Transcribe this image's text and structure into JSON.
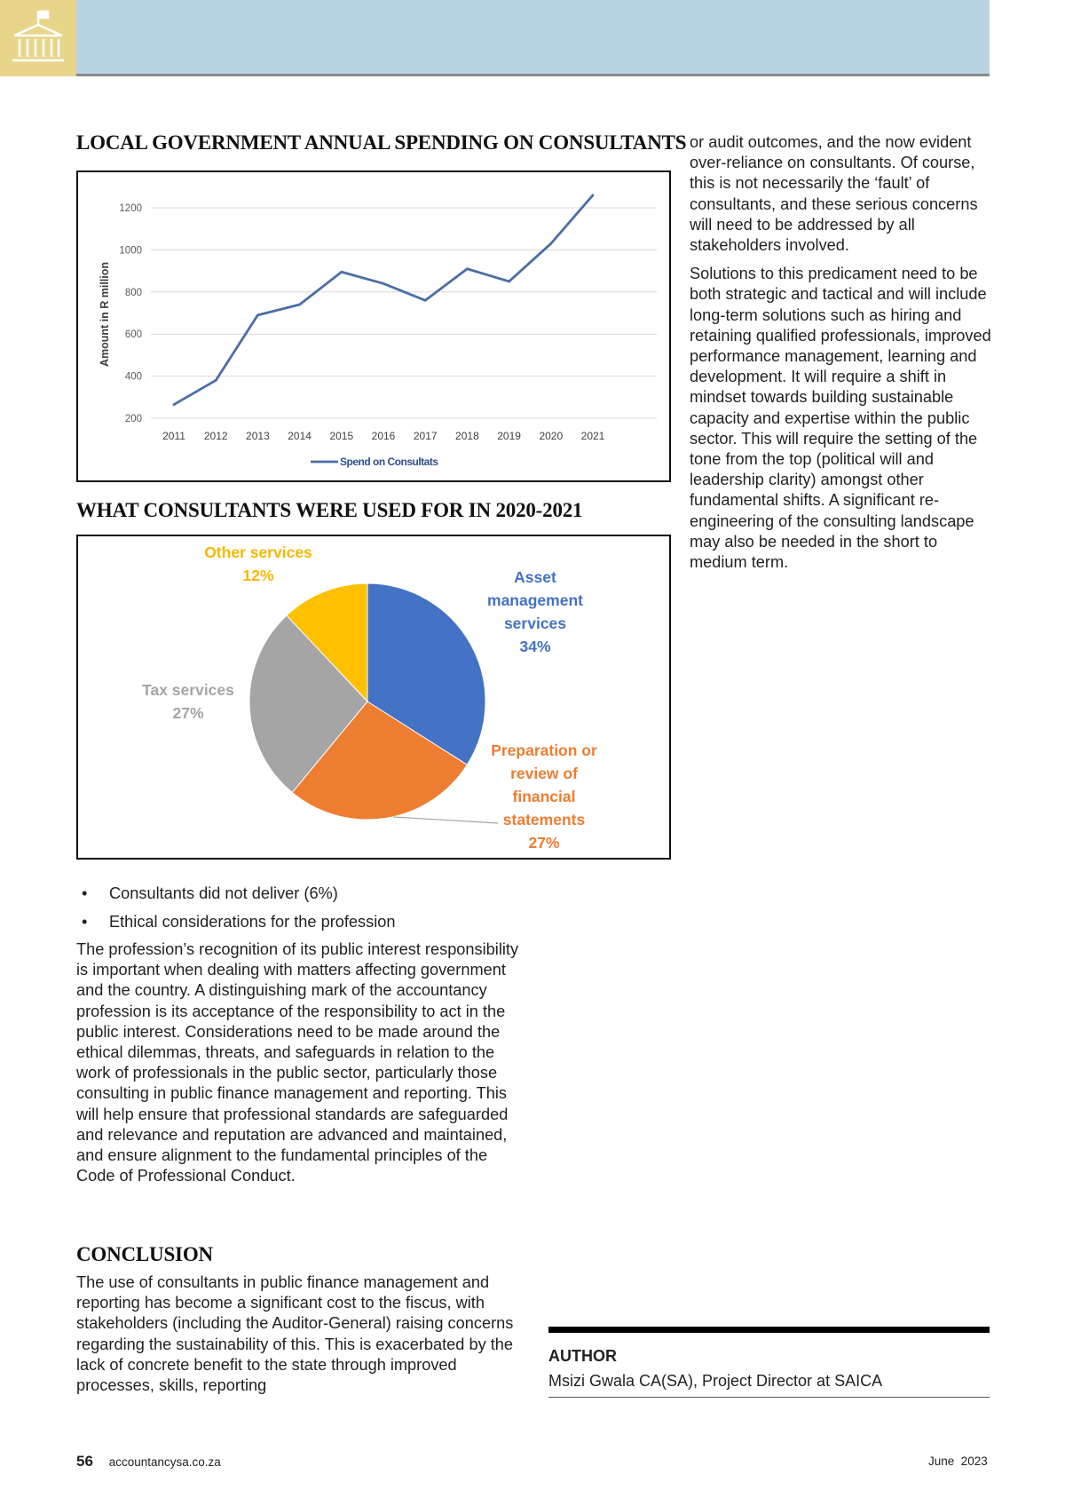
{
  "header": {
    "logo_icon": "government-building-icon"
  },
  "line_section_title": "LOCAL GOVERNMENT ANNUAL SPENDING ON CONSULTANTS",
  "pie_section_title": "WHAT CONSULTANTS WERE USED FOR IN 2020-2021",
  "chart_data": [
    {
      "type": "line",
      "title": "",
      "xlabel": "",
      "ylabel": "Amount in R million",
      "x": [
        "2011",
        "2012",
        "2013",
        "2014",
        "2015",
        "2016",
        "2017",
        "2018",
        "2019",
        "2020",
        "2021"
      ],
      "yticks": [
        200,
        400,
        600,
        800,
        1000,
        1200
      ],
      "ylim": [
        200,
        1200
      ],
      "grid": true,
      "legend_position": "bottom",
      "series": [
        {
          "name": "Spend on Consultats",
          "color": "#4a6fa5",
          "values": [
            265,
            380,
            690,
            740,
            895,
            840,
            760,
            910,
            850,
            1030,
            1260
          ]
        }
      ]
    },
    {
      "type": "pie",
      "title": "",
      "slices": [
        {
          "label": "Asset management services",
          "percent_label": "34%",
          "value": 34,
          "color": "#4472c4"
        },
        {
          "label": "Preparation or review of financial statements",
          "percent_label": "27%",
          "value": 27,
          "color": "#ed7d31"
        },
        {
          "label": "Tax services",
          "percent_label": "27%",
          "value": 27,
          "color": "#a5a5a5"
        },
        {
          "label": "Other services",
          "percent_label": "12%",
          "value": 12,
          "color": "#ffc000"
        }
      ]
    }
  ],
  "pie_labels": {
    "other": [
      "Other services",
      "12%"
    ],
    "asset": [
      "Asset",
      "management",
      "services",
      "34%"
    ],
    "tax": [
      "Tax services",
      "27%"
    ],
    "prep": [
      "Preparation or",
      "review of",
      "financial",
      "statements",
      "27%"
    ]
  },
  "right_column": [
    "or audit outcomes, and the now evident over-reliance on consultants. Of course, this is not necessarily the ‘fault’ of consultants, and these serious concerns will need to be addressed by all stakeholders involved.",
    "Solutions to this predicament need to be both strategic and tactical and will include long-term solutions such as hiring and retaining qualified professionals, improved performance management, learning and development. It will require a shift in mindset towards building sustainable capacity and expertise within the public sector. This will require the setting of the tone from the top (political will and leadership clarity) amongst other fundamental shifts. A significant re-engineering of the consulting landscape may also be needed in the short to medium term."
  ],
  "bullets": [
    "Consultants did not deliver (6%)",
    "Ethical considerations for the profession"
  ],
  "ethics_paragraph": "The profession’s recognition of its public interest responsibility is important when dealing with matters affecting government and the country. A distinguishing mark of the accountancy profession is its acceptance of the responsibility to act in the public interest. Considerations need to be made around the ethical dilemmas, threats, and safeguards in relation to the work of professionals in the public sector, particularly those consulting in public finance management and reporting. This will help ensure that professional standards are safeguarded and relevance and reputation are advanced and maintained, and ensure alignment to the fundamental principles of the Code of Professional Conduct.",
  "conclusion_title": "CONCLUSION",
  "conclusion_paragraph": "The use of consultants in public finance management and reporting has become a significant cost to the fiscus, with stakeholders (including the Auditor-General) raising concerns regarding the sustainability of this. This is exacerbated by the lack of concrete benefit to the state through improved processes, skills, reporting",
  "author": {
    "title": "AUTHOR",
    "name": "Msizi Gwala CA(SA), Project Director at SAICA"
  },
  "footer": {
    "page_number": "56",
    "website": "accountancysa.co.za",
    "date": "June  2023"
  }
}
